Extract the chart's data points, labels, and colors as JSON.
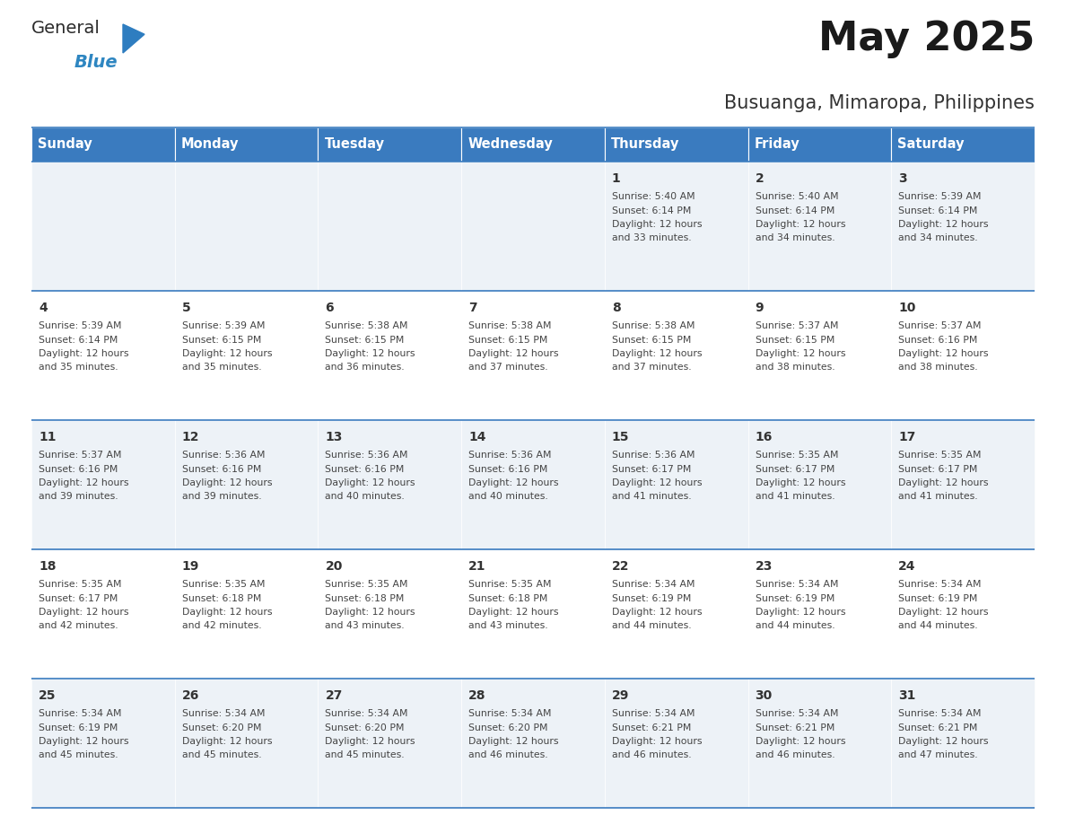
{
  "title": "May 2025",
  "subtitle": "Busuanga, Mimaropa, Philippines",
  "header_bg": "#3a7bbf",
  "header_text": "#ffffff",
  "row_bg_light": "#edf2f7",
  "row_bg_white": "#ffffff",
  "text_color": "#333333",
  "day_headers": [
    "Sunday",
    "Monday",
    "Tuesday",
    "Wednesday",
    "Thursday",
    "Friday",
    "Saturday"
  ],
  "days": [
    {
      "day": 1,
      "col": 4,
      "row": 0,
      "sunrise": "5:40 AM",
      "sunset": "6:14 PM",
      "daylight": "12 hours",
      "daylight2": "and 33 minutes."
    },
    {
      "day": 2,
      "col": 5,
      "row": 0,
      "sunrise": "5:40 AM",
      "sunset": "6:14 PM",
      "daylight": "12 hours",
      "daylight2": "and 34 minutes."
    },
    {
      "day": 3,
      "col": 6,
      "row": 0,
      "sunrise": "5:39 AM",
      "sunset": "6:14 PM",
      "daylight": "12 hours",
      "daylight2": "and 34 minutes."
    },
    {
      "day": 4,
      "col": 0,
      "row": 1,
      "sunrise": "5:39 AM",
      "sunset": "6:14 PM",
      "daylight": "12 hours",
      "daylight2": "and 35 minutes."
    },
    {
      "day": 5,
      "col": 1,
      "row": 1,
      "sunrise": "5:39 AM",
      "sunset": "6:15 PM",
      "daylight": "12 hours",
      "daylight2": "and 35 minutes."
    },
    {
      "day": 6,
      "col": 2,
      "row": 1,
      "sunrise": "5:38 AM",
      "sunset": "6:15 PM",
      "daylight": "12 hours",
      "daylight2": "and 36 minutes."
    },
    {
      "day": 7,
      "col": 3,
      "row": 1,
      "sunrise": "5:38 AM",
      "sunset": "6:15 PM",
      "daylight": "12 hours",
      "daylight2": "and 37 minutes."
    },
    {
      "day": 8,
      "col": 4,
      "row": 1,
      "sunrise": "5:38 AM",
      "sunset": "6:15 PM",
      "daylight": "12 hours",
      "daylight2": "and 37 minutes."
    },
    {
      "day": 9,
      "col": 5,
      "row": 1,
      "sunrise": "5:37 AM",
      "sunset": "6:15 PM",
      "daylight": "12 hours",
      "daylight2": "and 38 minutes."
    },
    {
      "day": 10,
      "col": 6,
      "row": 1,
      "sunrise": "5:37 AM",
      "sunset": "6:16 PM",
      "daylight": "12 hours",
      "daylight2": "and 38 minutes."
    },
    {
      "day": 11,
      "col": 0,
      "row": 2,
      "sunrise": "5:37 AM",
      "sunset": "6:16 PM",
      "daylight": "12 hours",
      "daylight2": "and 39 minutes."
    },
    {
      "day": 12,
      "col": 1,
      "row": 2,
      "sunrise": "5:36 AM",
      "sunset": "6:16 PM",
      "daylight": "12 hours",
      "daylight2": "and 39 minutes."
    },
    {
      "day": 13,
      "col": 2,
      "row": 2,
      "sunrise": "5:36 AM",
      "sunset": "6:16 PM",
      "daylight": "12 hours",
      "daylight2": "and 40 minutes."
    },
    {
      "day": 14,
      "col": 3,
      "row": 2,
      "sunrise": "5:36 AM",
      "sunset": "6:16 PM",
      "daylight": "12 hours",
      "daylight2": "and 40 minutes."
    },
    {
      "day": 15,
      "col": 4,
      "row": 2,
      "sunrise": "5:36 AM",
      "sunset": "6:17 PM",
      "daylight": "12 hours",
      "daylight2": "and 41 minutes."
    },
    {
      "day": 16,
      "col": 5,
      "row": 2,
      "sunrise": "5:35 AM",
      "sunset": "6:17 PM",
      "daylight": "12 hours",
      "daylight2": "and 41 minutes."
    },
    {
      "day": 17,
      "col": 6,
      "row": 2,
      "sunrise": "5:35 AM",
      "sunset": "6:17 PM",
      "daylight": "12 hours",
      "daylight2": "and 41 minutes."
    },
    {
      "day": 18,
      "col": 0,
      "row": 3,
      "sunrise": "5:35 AM",
      "sunset": "6:17 PM",
      "daylight": "12 hours",
      "daylight2": "and 42 minutes."
    },
    {
      "day": 19,
      "col": 1,
      "row": 3,
      "sunrise": "5:35 AM",
      "sunset": "6:18 PM",
      "daylight": "12 hours",
      "daylight2": "and 42 minutes."
    },
    {
      "day": 20,
      "col": 2,
      "row": 3,
      "sunrise": "5:35 AM",
      "sunset": "6:18 PM",
      "daylight": "12 hours",
      "daylight2": "and 43 minutes."
    },
    {
      "day": 21,
      "col": 3,
      "row": 3,
      "sunrise": "5:35 AM",
      "sunset": "6:18 PM",
      "daylight": "12 hours",
      "daylight2": "and 43 minutes."
    },
    {
      "day": 22,
      "col": 4,
      "row": 3,
      "sunrise": "5:34 AM",
      "sunset": "6:19 PM",
      "daylight": "12 hours",
      "daylight2": "and 44 minutes."
    },
    {
      "day": 23,
      "col": 5,
      "row": 3,
      "sunrise": "5:34 AM",
      "sunset": "6:19 PM",
      "daylight": "12 hours",
      "daylight2": "and 44 minutes."
    },
    {
      "day": 24,
      "col": 6,
      "row": 3,
      "sunrise": "5:34 AM",
      "sunset": "6:19 PM",
      "daylight": "12 hours",
      "daylight2": "and 44 minutes."
    },
    {
      "day": 25,
      "col": 0,
      "row": 4,
      "sunrise": "5:34 AM",
      "sunset": "6:19 PM",
      "daylight": "12 hours",
      "daylight2": "and 45 minutes."
    },
    {
      "day": 26,
      "col": 1,
      "row": 4,
      "sunrise": "5:34 AM",
      "sunset": "6:20 PM",
      "daylight": "12 hours",
      "daylight2": "and 45 minutes."
    },
    {
      "day": 27,
      "col": 2,
      "row": 4,
      "sunrise": "5:34 AM",
      "sunset": "6:20 PM",
      "daylight": "12 hours",
      "daylight2": "and 45 minutes."
    },
    {
      "day": 28,
      "col": 3,
      "row": 4,
      "sunrise": "5:34 AM",
      "sunset": "6:20 PM",
      "daylight": "12 hours",
      "daylight2": "and 46 minutes."
    },
    {
      "day": 29,
      "col": 4,
      "row": 4,
      "sunrise": "5:34 AM",
      "sunset": "6:21 PM",
      "daylight": "12 hours",
      "daylight2": "and 46 minutes."
    },
    {
      "day": 30,
      "col": 5,
      "row": 4,
      "sunrise": "5:34 AM",
      "sunset": "6:21 PM",
      "daylight": "12 hours",
      "daylight2": "and 46 minutes."
    },
    {
      "day": 31,
      "col": 6,
      "row": 4,
      "sunrise": "5:34 AM",
      "sunset": "6:21 PM",
      "daylight": "12 hours",
      "daylight2": "and 47 minutes."
    }
  ],
  "logo_general_color": "#2b2b2b",
  "logo_blue_color": "#2e86c1",
  "logo_triangle_color": "#2e7dc0",
  "title_fontsize": 32,
  "subtitle_fontsize": 15,
  "header_fontsize": 10.5,
  "day_num_fontsize": 10,
  "info_fontsize": 7.8
}
